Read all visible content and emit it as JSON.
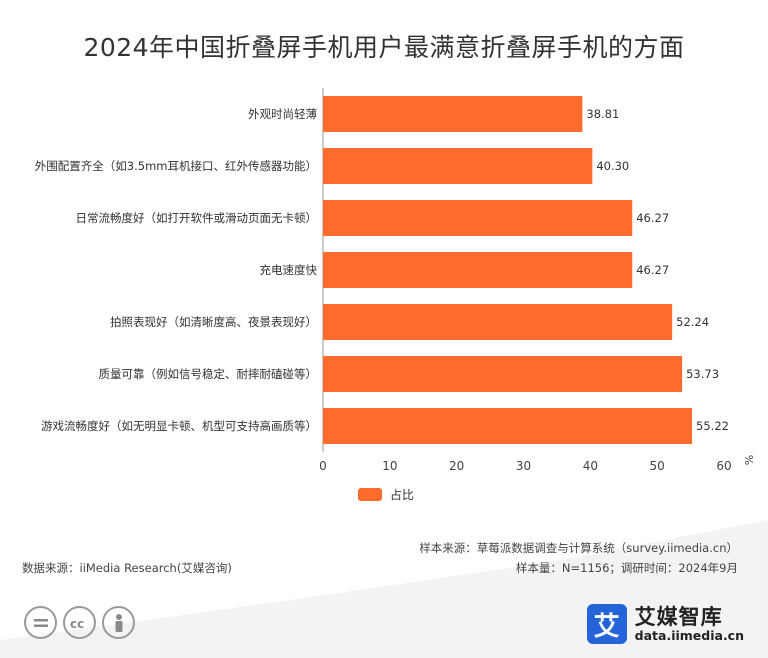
{
  "title": "2024年中国折叠屏手机用户最满意折叠屏手机的方面",
  "chart_data": {
    "type": "bar",
    "orientation": "horizontal",
    "categories": [
      "外观时尚轻薄",
      "外围配置齐全（如3.5mm耳机接口、红外传感器功能）",
      "日常流畅度好（如打开软件或滑动页面无卡顿）",
      "充电速度快",
      "拍照表现好（如清晰度高、夜景表现好）",
      "质量可靠（例如信号稳定、耐摔耐磕碰等）",
      "游戏流畅度好（如无明显卡顿、机型可支持高画质等）"
    ],
    "series": [
      {
        "name": "占比",
        "values": [
          38.81,
          40.3,
          46.27,
          46.27,
          52.24,
          53.73,
          55.22
        ],
        "labels": [
          "38.81",
          "40.30",
          "46.27",
          "46.27",
          "52.24",
          "53.73",
          "55.22"
        ]
      }
    ],
    "xlim": [
      0,
      60
    ],
    "xticks": [
      "0",
      "10",
      "20",
      "30",
      "40",
      "50",
      "60"
    ],
    "xunit": "%",
    "grid": false,
    "legend_position": "bottom",
    "colors": {
      "bar": "#FF6B2C"
    }
  },
  "footer": {
    "sample_source": "样本来源：草莓派数据调查与计算系统（survey.iimedia.cn）",
    "data_source": "数据来源：iiMedia Research(艾媒咨询)",
    "sample_info": "样本量：N=1156；调研时间：2024年9月"
  },
  "brand": {
    "logo_char": "艾",
    "name_cn": "艾媒智库",
    "name_en": "data.iimedia.cn",
    "logo_color": "#2563D9"
  },
  "license_icons": [
    "equals-icon",
    "cc-icon",
    "person-icon"
  ]
}
